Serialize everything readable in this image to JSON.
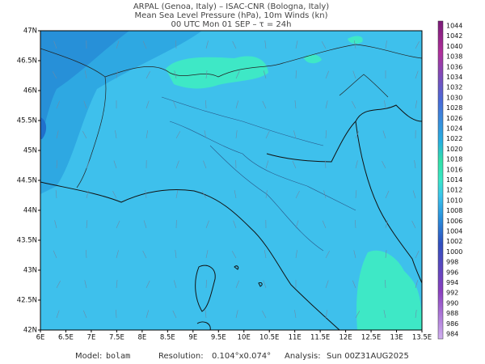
{
  "header": {
    "lines": [
      "ARPAL (Genoa, Italy)  –  ISAC-CNR (Bologna, Italy)",
      "Mean Sea Level Pressure (hPa), 10m Winds (kn)",
      "00 UTC Mon 01 SEP  –  τ = 24h"
    ]
  },
  "map": {
    "lat_labels": [
      "47N",
      "46.5N",
      "46N",
      "45.5N",
      "45N",
      "44.5N",
      "44N",
      "43.5N",
      "43N",
      "42.5N",
      "42N"
    ],
    "lon_labels": [
      "6E",
      "6.5E",
      "7E",
      "7.5E",
      "8E",
      "8.5E",
      "9E",
      "9.5E",
      "10E",
      "10.5E",
      "11E",
      "11.5E",
      "12E",
      "12.5E",
      "13E",
      "13.5E"
    ]
  },
  "colorbar": {
    "labels": [
      1044,
      1042,
      1040,
      1038,
      1036,
      1034,
      1032,
      1030,
      1028,
      1026,
      1024,
      1022,
      1020,
      1018,
      1016,
      1014,
      1012,
      1010,
      1008,
      1006,
      1004,
      1002,
      1000,
      998,
      996,
      994,
      992,
      990,
      988,
      986,
      984
    ]
  },
  "footer": {
    "model_label": "Model:",
    "model": "bolam",
    "resolution_label": "Resolution:",
    "resolution": "0.104°x0.074°",
    "analysis_label": "Analysis:",
    "analysis": "Sun  00Z31AUG2025"
  }
}
